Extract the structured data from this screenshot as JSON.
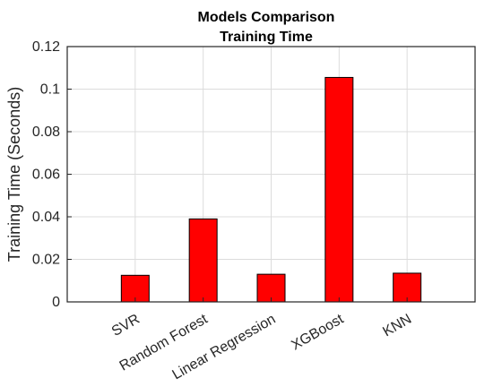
{
  "chart_data": {
    "type": "bar",
    "title": [
      "Models Comparison",
      "Training Time"
    ],
    "xlabel": "",
    "ylabel": "Training Time (Seconds)",
    "categories": [
      "SVR",
      "Random Forest",
      "Linear Regression",
      "XGBoost",
      "KNN"
    ],
    "values": [
      0.0125,
      0.039,
      0.013,
      0.1055,
      0.0135
    ],
    "ylim": [
      0,
      0.12
    ],
    "yticks": [
      "0",
      "0.02",
      "0.04",
      "0.06",
      "0.08",
      "0.1",
      "0.12"
    ],
    "ytick_values": [
      0,
      0.02,
      0.04,
      0.06,
      0.08,
      0.1,
      0.12
    ],
    "grid": true,
    "bar_color": "#ff0000",
    "edge_color": "#000000",
    "xtick_rotation": "angled"
  }
}
